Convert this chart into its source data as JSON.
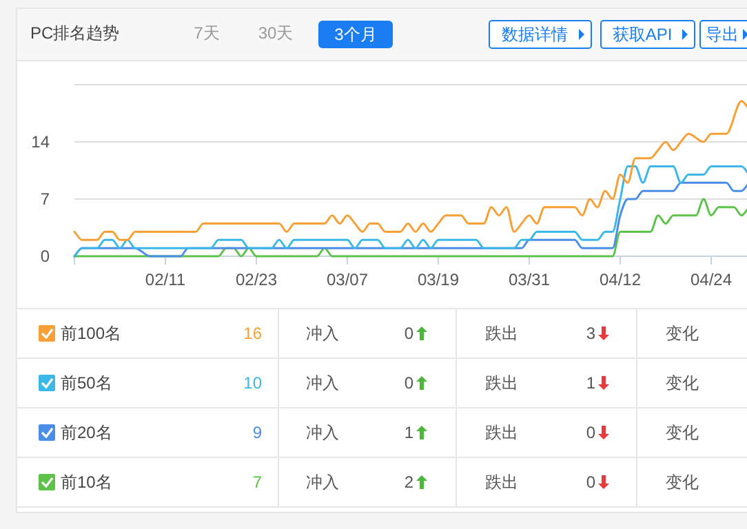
{
  "chart_data": {
    "type": "line",
    "title": "PC排名趋势",
    "xlim": [
      "--01-30",
      "--04-29"
    ],
    "xticks": [
      {
        "value": "--01-30",
        "label": null
      },
      {
        "value": "--02-11",
        "label": "02/11"
      },
      {
        "value": "--02-23",
        "label": "02/23"
      },
      {
        "value": "--03-07",
        "label": "03/07"
      },
      {
        "value": "--03-19",
        "label": "03/19"
      },
      {
        "value": "--03-31",
        "label": "03/31"
      },
      {
        "value": "--04-12",
        "label": "04/12"
      },
      {
        "value": "--04-24",
        "label": "04/24"
      }
    ],
    "ylim": [
      0,
      21
    ],
    "yticks": [
      0,
      7,
      14,
      {
        "value": 21,
        "label": null
      }
    ],
    "grid": "y",
    "legend": "bottom",
    "marker": "none",
    "line_style": "solid",
    "series": [
      {
        "name": "前100名",
        "color": "#f7a035",
        "x": [
          "--01-30",
          "--01-31",
          "--02-02",
          "--02-03",
          "--02-04",
          "--02-05",
          "--02-06",
          "--02-07",
          "--02-15",
          "--02-16",
          "--02-26",
          "--02-27",
          "--02-28",
          "--03-04",
          "--03-05",
          "--03-06",
          "--03-07",
          "--03-08",
          "--03-09",
          "--03-10",
          "--03-11",
          "--03-12",
          "--03-14",
          "--03-15",
          "--03-16",
          "--03-17",
          "--03-18",
          "--03-19",
          "--03-20",
          "--03-22",
          "--03-23",
          "--03-25",
          "--03-26",
          "--03-27",
          "--03-28",
          "--03-29",
          "--03-30",
          "--03-31",
          "--04-01",
          "--04-02",
          "--04-06",
          "--04-07",
          "--04-08",
          "--04-09",
          "--04-10",
          "--04-11",
          "--04-12",
          "--04-13",
          "--04-14",
          "--04-16",
          "--04-17",
          "--04-18",
          "--04-19",
          "--04-20",
          "--04-21",
          "--04-23",
          "--04-24",
          "--04-26",
          "--04-28",
          "--04-29"
        ],
        "values": [
          3,
          2,
          2,
          3,
          3,
          2,
          2,
          3,
          3,
          4,
          4,
          3,
          4,
          4,
          5,
          4,
          5,
          4,
          3,
          4,
          4,
          3,
          3,
          4,
          3,
          4,
          3,
          4,
          5,
          5,
          4,
          4,
          6,
          5,
          6,
          3,
          4,
          5,
          4,
          6,
          6,
          5,
          7,
          6,
          8,
          7,
          10,
          9,
          12,
          12,
          13,
          14,
          13,
          14,
          15,
          14,
          15,
          15,
          19,
          18
        ]
      },
      {
        "name": "前50名",
        "color": "#3bb8e8",
        "x": [
          "--01-30",
          "--01-31",
          "--02-02",
          "--02-03",
          "--02-04",
          "--02-05",
          "--02-06",
          "--02-07",
          "--02-17",
          "--02-18",
          "--02-21",
          "--02-22",
          "--02-25",
          "--02-26",
          "--02-27",
          "--02-28",
          "--03-07",
          "--03-08",
          "--03-09",
          "--03-11",
          "--03-12",
          "--03-14",
          "--03-15",
          "--03-16",
          "--03-17",
          "--03-18",
          "--03-19",
          "--03-24",
          "--03-25",
          "--03-29",
          "--03-30",
          "--03-31",
          "--04-01",
          "--04-06",
          "--04-07",
          "--04-09",
          "--04-10",
          "--04-11",
          "--04-12",
          "--04-13",
          "--04-14",
          "--04-15",
          "--04-16",
          "--04-19",
          "--04-20",
          "--04-21",
          "--04-23",
          "--04-24",
          "--04-28",
          "--04-29"
        ],
        "values": [
          0,
          1,
          1,
          2,
          2,
          1,
          2,
          1,
          1,
          2,
          2,
          1,
          1,
          2,
          1,
          2,
          2,
          1,
          2,
          2,
          1,
          1,
          2,
          1,
          2,
          1,
          2,
          2,
          1,
          1,
          2,
          2,
          3,
          3,
          2,
          2,
          3,
          3,
          7,
          11,
          11,
          9,
          11,
          11,
          9,
          10,
          10,
          11,
          11,
          10
        ]
      },
      {
        "name": "前20名",
        "color": "#4b8ee8",
        "x": [
          "--01-30",
          "--01-31",
          "--02-07",
          "--02-09",
          "--02-13",
          "--02-14",
          "--03-30",
          "--03-31",
          "--04-06",
          "--04-07",
          "--04-11",
          "--04-12",
          "--04-13",
          "--04-14",
          "--04-15",
          "--04-19",
          "--04-20",
          "--04-26",
          "--04-27",
          "--04-28",
          "--04-29"
        ],
        "values": [
          0,
          1,
          1,
          0,
          0,
          1,
          1,
          2,
          2,
          1,
          1,
          5,
          7,
          7,
          8,
          8,
          9,
          9,
          8,
          8,
          9
        ]
      },
      {
        "name": "前10名",
        "color": "#5cc24a",
        "x": [
          "--01-30",
          "--02-18",
          "--02-19",
          "--02-20",
          "--02-21",
          "--02-22",
          "--02-23",
          "--03-03",
          "--03-04",
          "--03-05",
          "--04-11",
          "--04-12",
          "--04-16",
          "--04-17",
          "--04-18",
          "--04-19",
          "--04-22",
          "--04-23",
          "--04-24",
          "--04-25",
          "--04-27",
          "--04-28",
          "--04-29"
        ],
        "values": [
          0,
          0,
          1,
          1,
          0,
          1,
          0,
          0,
          1,
          0,
          0,
          3,
          3,
          5,
          4,
          5,
          5,
          7,
          5,
          6,
          6,
          5,
          6
        ]
      }
    ],
    "annotations": [
      "7天",
      "30天",
      "3个月",
      "数据详情",
      "获取API",
      "导出",
      "16",
      "冲入",
      "0",
      "跌出",
      "3",
      "变化",
      "10",
      "冲入",
      "0",
      "跌出",
      "1",
      "变化",
      "9",
      "冲入",
      "1",
      "跌出",
      "0",
      "变化",
      "7",
      "冲入",
      "2",
      "跌出",
      "0",
      "变化"
    ]
  }
}
